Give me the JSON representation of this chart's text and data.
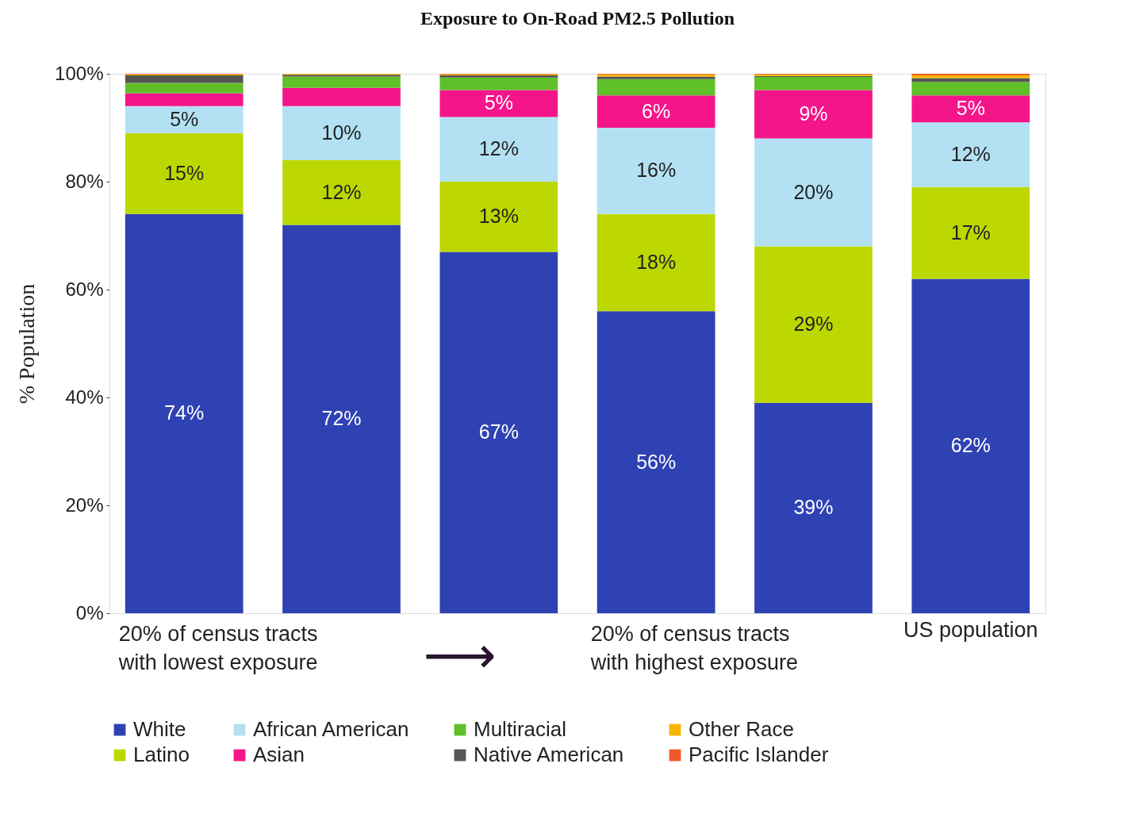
{
  "chart_data": {
    "type": "bar",
    "stacked": true,
    "title": "Exposure to On-Road PM2.5 Pollution",
    "ylabel": "% Population",
    "categories": [
      null,
      null,
      null,
      null,
      null,
      "US population"
    ],
    "series": [
      {
        "name": "White",
        "color": "#2f42b3",
        "values": [
          74,
          72,
          67,
          56,
          39,
          62
        ],
        "value_labels": [
          "74%",
          "72%",
          "67%",
          "56%",
          "39%",
          "62%"
        ]
      },
      {
        "name": "Latino",
        "color": "#bcd800",
        "values": [
          15,
          12,
          13,
          18,
          29,
          17
        ],
        "value_labels": [
          "15%",
          "12%",
          "13%",
          "18%",
          "29%",
          "17%"
        ]
      },
      {
        "name": "African American",
        "color": "#b3e1f3",
        "values": [
          5,
          10,
          12,
          16,
          20,
          12
        ],
        "value_labels": [
          "5%",
          "10%",
          "12%",
          "16%",
          "20%",
          "12%"
        ]
      },
      {
        "name": "Asian",
        "color": "#f5158a",
        "values": [
          2.4,
          3.4,
          5,
          6,
          9,
          5
        ],
        "value_labels": [
          null,
          null,
          "5%",
          "6%",
          "9%",
          "5%"
        ]
      },
      {
        "name": "Multiracial",
        "color": "#5fc02a",
        "values": [
          1.9,
          2.1,
          2.3,
          3.0,
          2.4,
          2.5
        ]
      },
      {
        "name": "Native American",
        "color": "#555555",
        "values": [
          1.4,
          0.3,
          0.4,
          0.5,
          0.2,
          0.7
        ]
      },
      {
        "name": "Other Race",
        "color": "#f7b500",
        "values": [
          0.2,
          0.2,
          0.2,
          0.4,
          0.3,
          0.5
        ]
      },
      {
        "name": "Pacific Islander",
        "color": "#f05a28",
        "values": [
          0.1,
          0,
          0.1,
          0.1,
          0.1,
          0.3
        ]
      }
    ],
    "ylim": [
      0,
      100
    ],
    "yticks": [
      {
        "value": 0,
        "label": "0%"
      },
      {
        "value": 20,
        "label": "20%"
      },
      {
        "value": 40,
        "label": "40%"
      },
      {
        "value": 60,
        "label": "60%"
      },
      {
        "value": 80,
        "label": "80%"
      },
      {
        "value": 100,
        "label": "100%"
      }
    ],
    "annotations": [
      "20% of census tracts\nwith lowest exposure",
      "20% of census tracts\nwith highest exposure",
      "⟶"
    ],
    "legend": "bottom",
    "grid": false
  }
}
